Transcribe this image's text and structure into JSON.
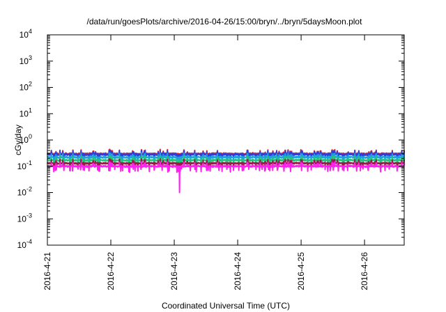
{
  "chart_data": {
    "type": "line",
    "title": "/data/run/goesPlots/archive/2016-04-26/15:00/bryn/../bryn/5daysMoon.plot",
    "xlabel": "Coordinated Universal Time (UTC)",
    "ylabel": "cGy/day",
    "yscale": "log",
    "ylim": [
      0.0001,
      10000
    ],
    "xlim": [
      "2016-04-21",
      "2016-04-26 15:00"
    ],
    "grid": false,
    "x_ticks": [
      "2016-4-21",
      "2016-4-22",
      "2016-4-23",
      "2016-4-24",
      "2016-4-25",
      "2016-4-26"
    ],
    "y_ticks": [
      {
        "base": "10",
        "exp": "-4"
      },
      {
        "base": "10",
        "exp": "-3"
      },
      {
        "base": "10",
        "exp": "-2"
      },
      {
        "base": "10",
        "exp": "-1"
      },
      {
        "base": "10",
        "exp": "0"
      },
      {
        "base": "10",
        "exp": "1"
      },
      {
        "base": "10",
        "exp": "2"
      },
      {
        "base": "10",
        "exp": "3"
      },
      {
        "base": "10",
        "exp": "4"
      }
    ],
    "series": [
      {
        "color": "#e8242a",
        "level": 0.3
      },
      {
        "color": "#2e3fd9",
        "level": 0.28
      },
      {
        "color": "#1ea0e0",
        "level": 0.22
      },
      {
        "color": "#21c47a",
        "level": 0.17
      },
      {
        "color": "#9a1a4a",
        "level": 0.13
      },
      {
        "color": "#ff22ee",
        "level": 0.1
      }
    ],
    "annotations": [
      {
        "type": "dip",
        "series_color": "#ff22ee",
        "x": "2016-04-23 02:00",
        "y": 0.01
      }
    ]
  }
}
